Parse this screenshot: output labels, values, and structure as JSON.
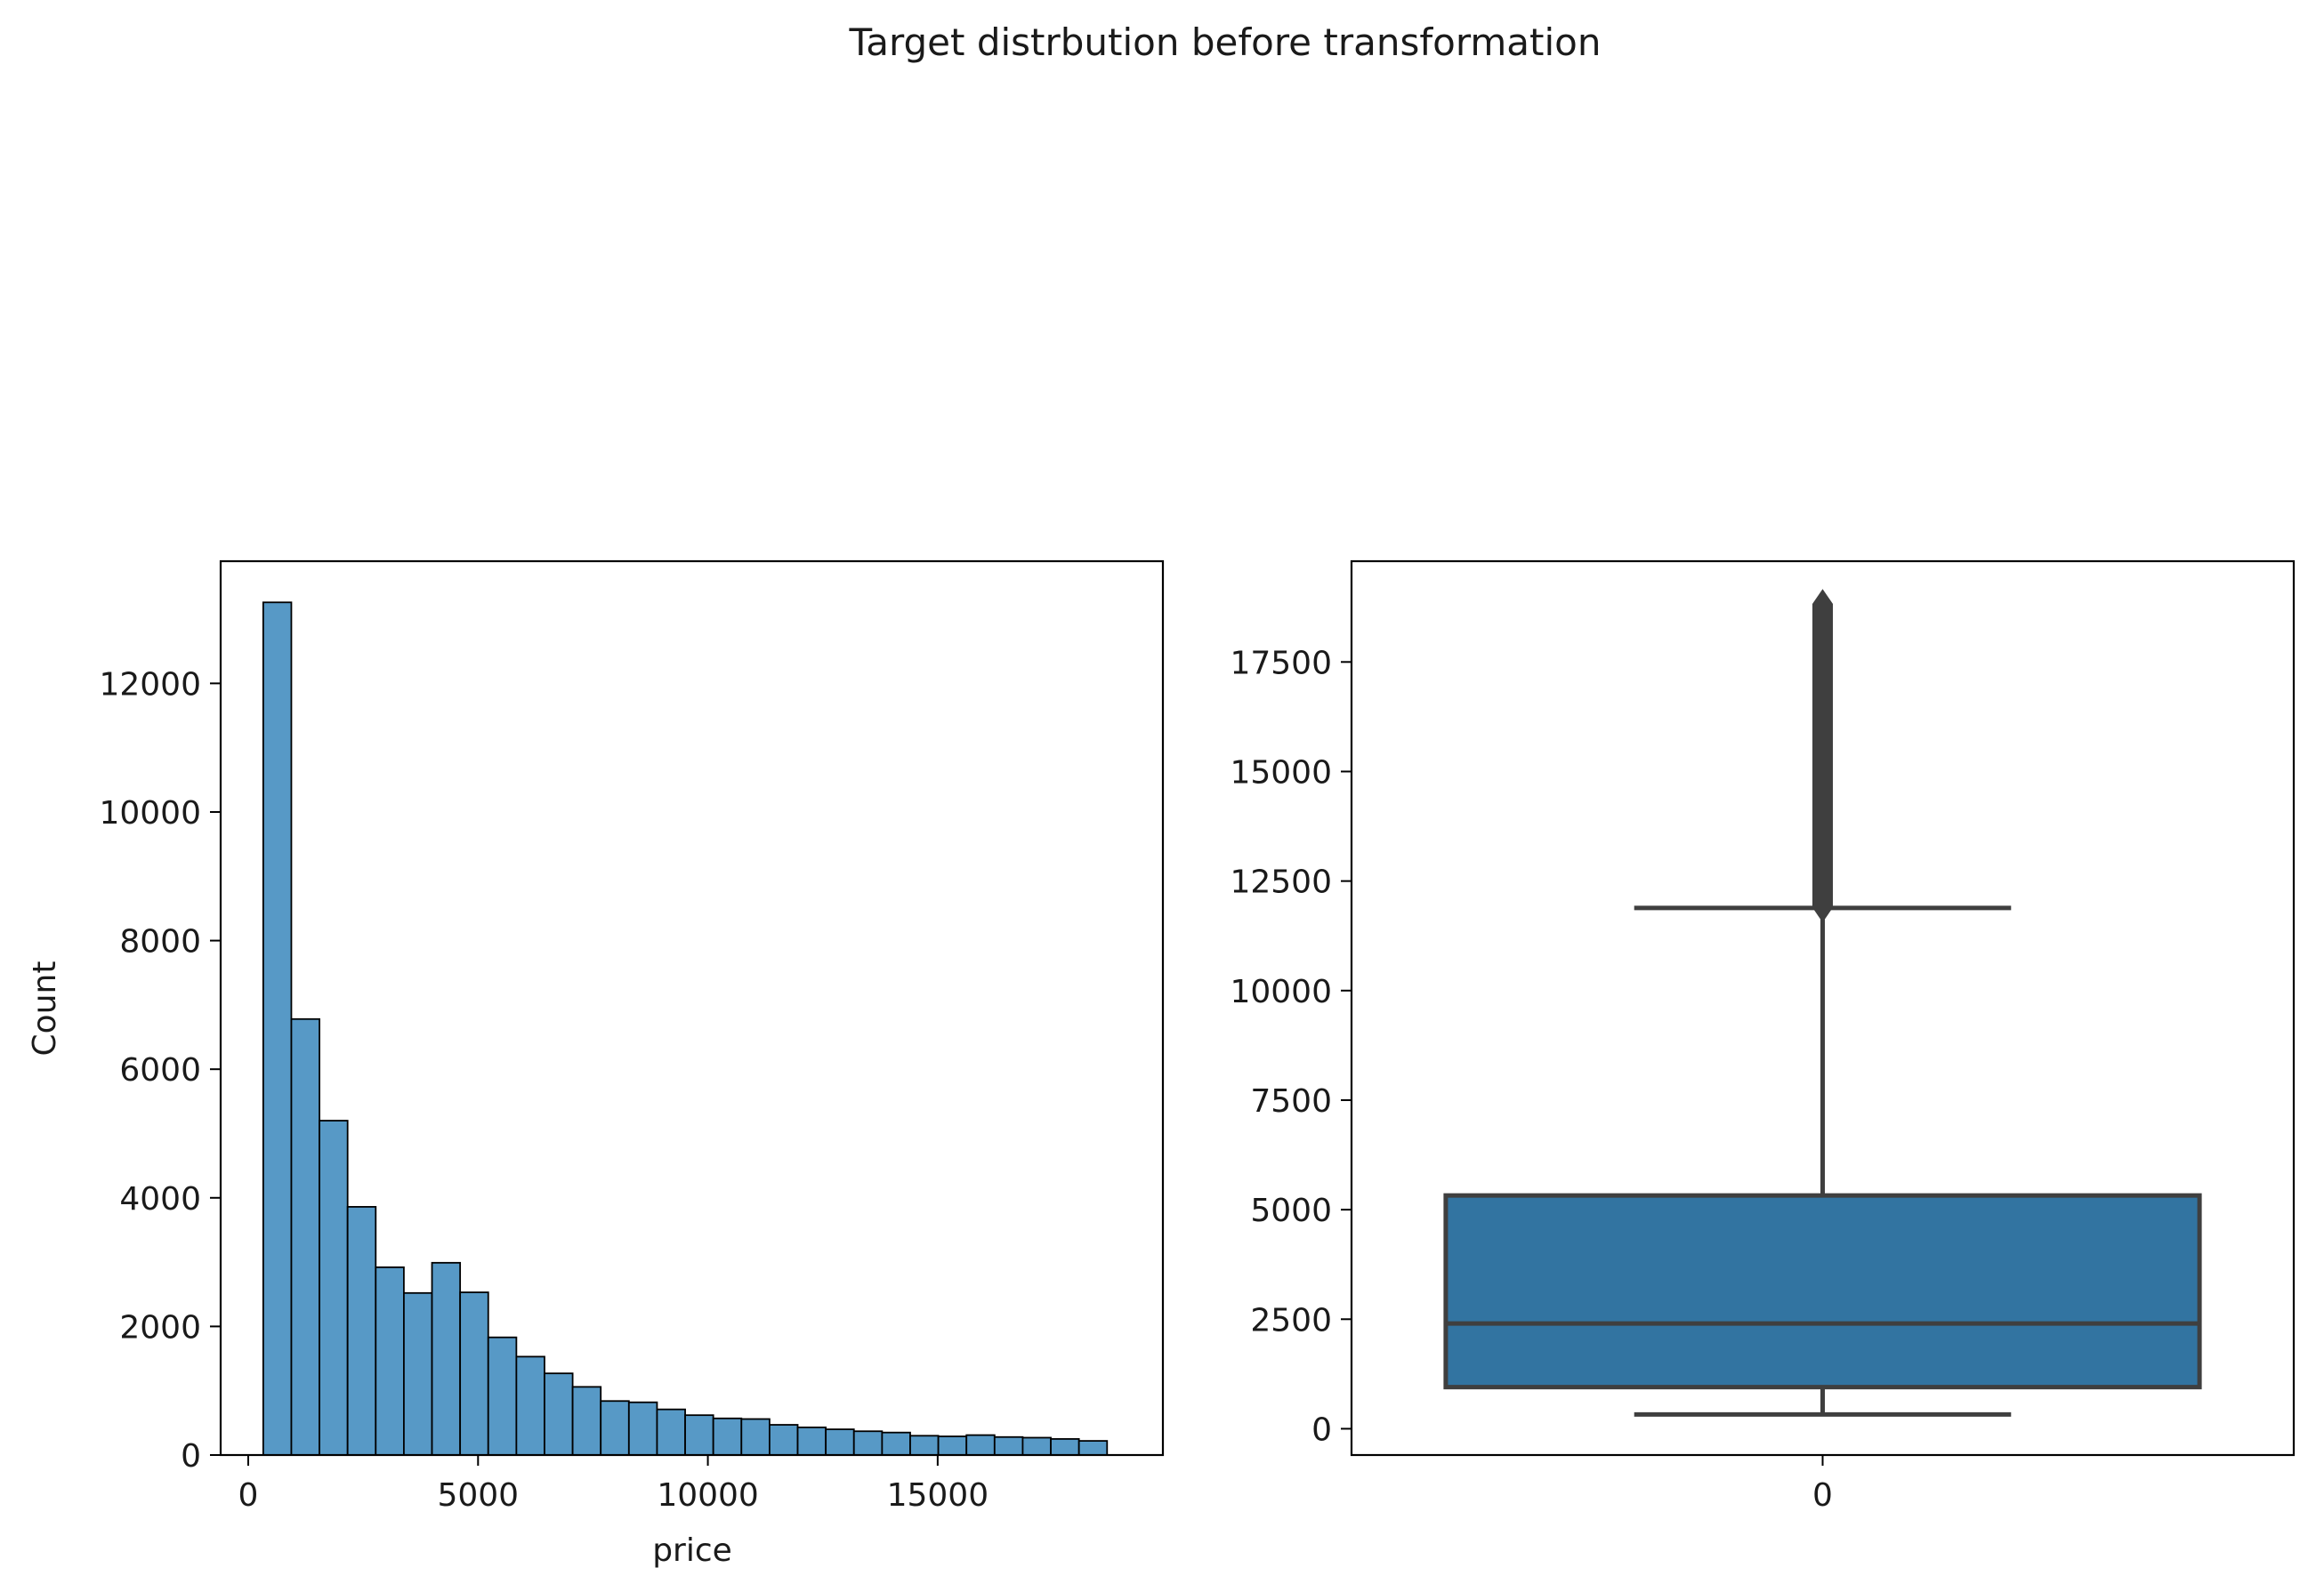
{
  "figure": {
    "suptitle": "Target distrbution before transformation"
  },
  "chart_data": [
    {
      "type": "bar",
      "subtype": "histogram",
      "xlabel": "price",
      "ylabel": "Count",
      "xlim": [
        -600,
        19900
      ],
      "ylim": [
        0,
        13900
      ],
      "xticks": [
        0,
        5000,
        10000,
        15000
      ],
      "yticks": [
        0,
        2000,
        4000,
        6000,
        8000,
        10000,
        12000
      ],
      "bin_start": 326,
      "bin_width": 612,
      "values": [
        13260,
        6780,
        5200,
        3860,
        2920,
        2520,
        2990,
        2530,
        1830,
        1530,
        1270,
        1060,
        840,
        820,
        710,
        620,
        570,
        560,
        470,
        430,
        400,
        370,
        350,
        300,
        290,
        310,
        280,
        270,
        250,
        220
      ],
      "colors": {
        "bar_fill": "#5799c6",
        "bar_edge": "#000000"
      },
      "grid": false
    },
    {
      "type": "box",
      "xlabel": "",
      "ylabel": "",
      "categories": [
        "0"
      ],
      "ylim": [
        -600,
        19800
      ],
      "yticks": [
        0,
        2500,
        5000,
        7500,
        10000,
        12500,
        15000,
        17500
      ],
      "box": {
        "min": 326,
        "q1": 950,
        "median": 2401,
        "q3": 5324,
        "whisker_high": 11886,
        "outliers_from": 11900,
        "outliers_to": 18823
      },
      "colors": {
        "box_fill": "#3274a1",
        "line": "#3f3f3f"
      },
      "grid": false
    }
  ]
}
